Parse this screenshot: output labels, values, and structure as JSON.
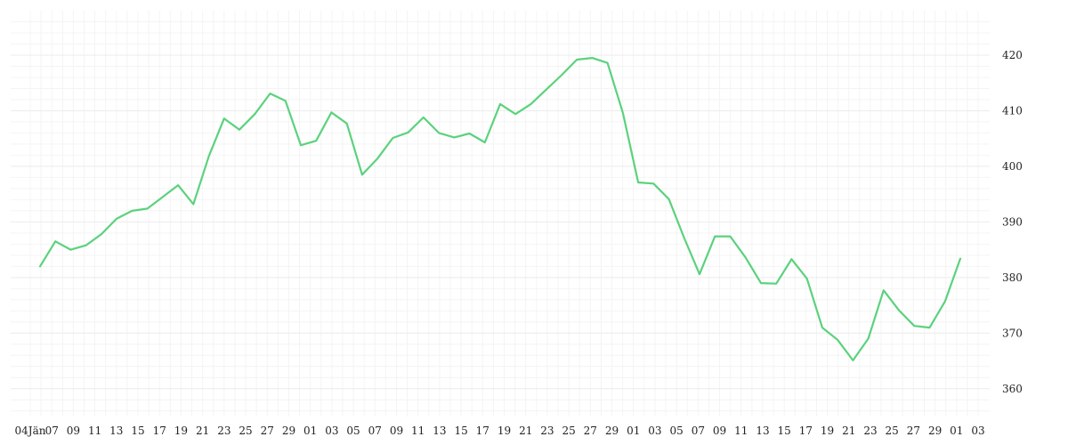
{
  "chart_data": {
    "type": "line",
    "title": "",
    "xlabel": "",
    "ylabel": "",
    "ylim": [
      355,
      428
    ],
    "grid": true,
    "legend": "none",
    "line_color": "#5bd27d",
    "y_ticks": [
      360,
      370,
      380,
      390,
      400,
      410,
      420
    ],
    "x_tick_labels": [
      "04Jän",
      "07",
      "09",
      "11",
      "13",
      "15",
      "17",
      "19",
      "21",
      "23",
      "25",
      "27",
      "29",
      "01",
      "03",
      "05",
      "07",
      "09",
      "11",
      "13",
      "15",
      "17",
      "19",
      "21",
      "23",
      "25",
      "27",
      "29",
      "01",
      "03",
      "05",
      "07",
      "09",
      "11",
      "13",
      "15",
      "17",
      "19",
      "21",
      "23",
      "25",
      "27",
      "29",
      "01",
      "03"
    ],
    "series": [
      {
        "values": [
          382.0,
          386.5,
          385.0,
          385.8,
          387.8,
          390.6,
          392.0,
          392.4,
          394.5,
          396.6,
          393.2,
          401.8,
          408.6,
          406.6,
          409.4,
          413.1,
          411.8,
          403.8,
          404.6,
          409.7,
          407.7,
          398.5,
          401.4,
          405.1,
          406.1,
          408.8,
          406.0,
          405.2,
          405.9,
          404.3,
          411.2,
          409.4,
          411.2,
          413.8,
          416.4,
          419.2,
          419.5,
          418.6,
          409.6,
          397.1,
          396.9,
          394.1,
          387.1,
          380.6,
          387.4,
          387.4,
          383.6,
          379.0,
          378.9,
          383.3,
          379.8,
          371.0,
          368.8,
          365.1,
          369.0,
          377.7,
          374.1,
          371.3,
          371.0,
          375.7,
          383.4
        ]
      }
    ]
  }
}
